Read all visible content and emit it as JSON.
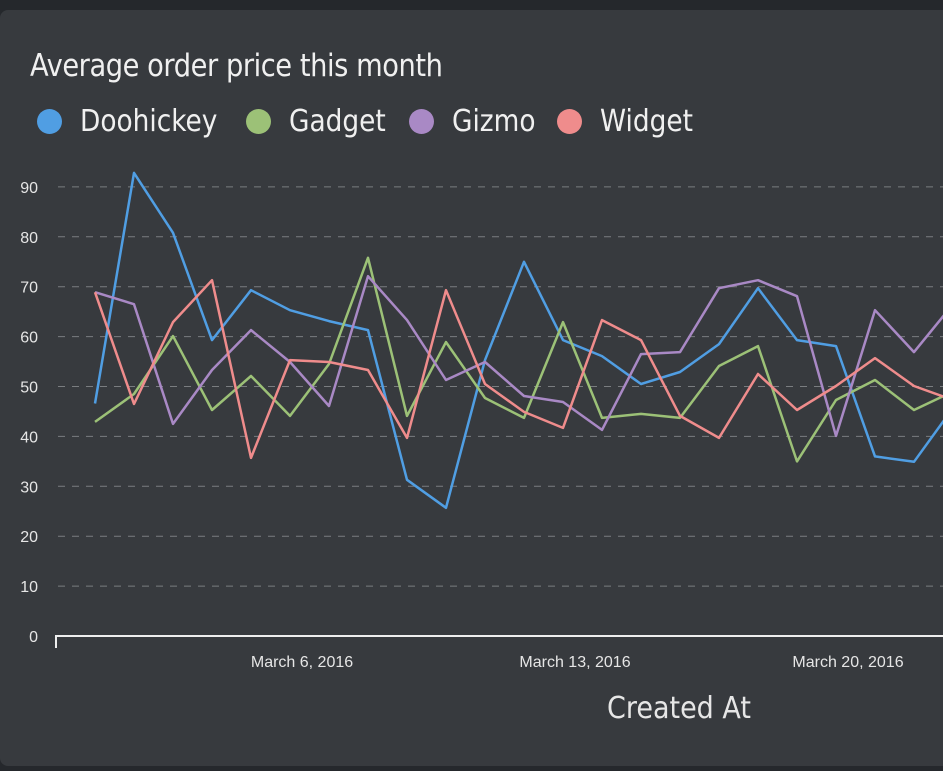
{
  "chart_data": {
    "type": "line",
    "title": "Average order price this month",
    "xlabel": "Created At",
    "ylabel": "",
    "ylim": [
      0,
      90
    ],
    "yticks": [
      0,
      10,
      20,
      30,
      40,
      50,
      60,
      70,
      80,
      90
    ],
    "xtick_labels": [
      {
        "date": "2016-03-06",
        "label": "March 6, 2016"
      },
      {
        "date": "2016-03-13",
        "label": "March 13, 2016"
      },
      {
        "date": "2016-03-20",
        "label": "March 20, 2016"
      }
    ],
    "grid": true,
    "legend": "top-left",
    "x": [
      "2016-03-01",
      "2016-03-02",
      "2016-03-03",
      "2016-03-04",
      "2016-03-05",
      "2016-03-06",
      "2016-03-07",
      "2016-03-08",
      "2016-03-09",
      "2016-03-10",
      "2016-03-11",
      "2016-03-12",
      "2016-03-13",
      "2016-03-14",
      "2016-03-15",
      "2016-03-16",
      "2016-03-17",
      "2016-03-18",
      "2016-03-19",
      "2016-03-20",
      "2016-03-21",
      "2016-03-22",
      "2016-03-23"
    ],
    "series": [
      {
        "name": "Doohickey",
        "color": "#509ee3",
        "values": [
          46.6,
          92.8,
          80.8,
          59.3,
          69.3,
          65.3,
          63.1,
          61.3,
          31.3,
          25.7,
          55.3,
          75.0,
          59.3,
          56.1,
          50.5,
          52.9,
          58.5,
          69.7,
          59.3,
          58.1,
          36.0,
          34.9,
          45.7
        ]
      },
      {
        "name": "Gadget",
        "color": "#9cc177",
        "values": [
          42.9,
          48.5,
          60.1,
          45.3,
          52.1,
          44.1,
          54.5,
          75.8,
          44.1,
          58.9,
          47.7,
          43.7,
          62.9,
          43.7,
          44.5,
          43.7,
          54.1,
          58.1,
          35.0,
          47.3,
          51.3,
          45.3,
          49.0
        ]
      },
      {
        "name": "Gizmo",
        "color": "#a989c5",
        "values": [
          68.9,
          66.5,
          42.5,
          53.3,
          61.3,
          54.9,
          46.1,
          72.1,
          63.3,
          51.3,
          54.9,
          48.1,
          46.9,
          41.3,
          56.5,
          56.9,
          69.7,
          71.3,
          68.1,
          40.1,
          65.3,
          56.9,
          66.5
        ]
      },
      {
        "name": "Widget",
        "color": "#ef8c8c",
        "values": [
          68.9,
          46.5,
          62.9,
          71.3,
          35.7,
          55.3,
          54.9,
          53.3,
          39.7,
          69.3,
          50.5,
          44.9,
          41.7,
          63.3,
          59.3,
          44.1,
          39.7,
          52.5,
          45.3,
          50.1,
          55.7,
          50.1,
          47.3
        ]
      }
    ]
  }
}
